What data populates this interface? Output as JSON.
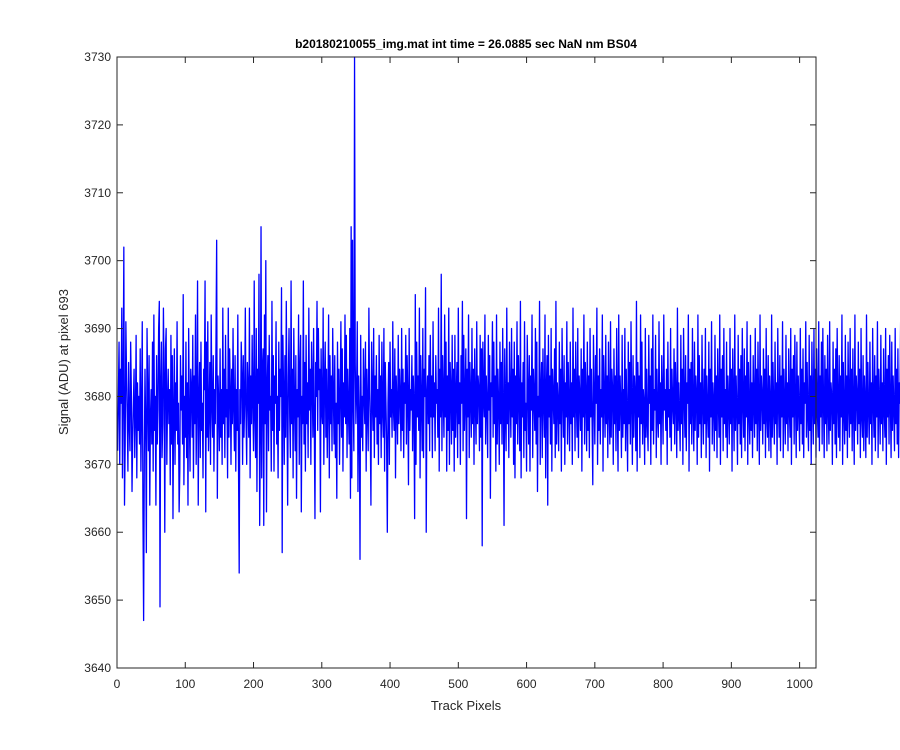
{
  "chart_data": {
    "type": "line",
    "title": "b20180210055_img.mat int time = 26.0885 sec  NaN nm BS04",
    "xlabel": "Track Pixels",
    "ylabel": "Signal (ADU) at pixel 693",
    "xlim": [
      0,
      1024
    ],
    "ylim": [
      3640,
      3730
    ],
    "xticks": [
      0,
      100,
      200,
      300,
      400,
      500,
      600,
      700,
      800,
      900,
      1000
    ],
    "yticks": [
      3640,
      3650,
      3660,
      3670,
      3680,
      3690,
      3700,
      3710,
      3720,
      3730
    ],
    "grid": false,
    "line_color": "#0000ff",
    "series": [
      {
        "x_start": 1,
        "x_step": 1,
        "y": [
          3672,
          3680,
          3688,
          3670,
          3684,
          3679,
          3693,
          3668,
          3681,
          3702,
          3664,
          3673,
          3691,
          3683,
          3677,
          3669,
          3685,
          3676,
          3672,
          3688,
          3681,
          3666,
          3674,
          3679,
          3684,
          3671,
          3677,
          3689,
          3668,
          3682,
          3675,
          3680,
          3673,
          3687,
          3669,
          3678,
          3691,
          3663,
          3647,
          3671,
          3684,
          3676,
          3657,
          3690,
          3680,
          3672,
          3686,
          3664,
          3677,
          3681,
          3673,
          3688,
          3669,
          3692,
          3675,
          3680,
          3664,
          3686,
          3673,
          3678,
          3690,
          3694,
          3649,
          3682,
          3688,
          3671,
          3676,
          3693,
          3683,
          3660,
          3687,
          3690,
          3670,
          3679,
          3684,
          3676,
          3681,
          3667,
          3689,
          3673,
          3686,
          3662,
          3678,
          3687,
          3670,
          3682,
          3675,
          3691,
          3673,
          3679,
          3663,
          3669,
          3686,
          3678,
          3683,
          3673,
          3695,
          3667,
          3680,
          3674,
          3688,
          3671,
          3682,
          3664,
          3690,
          3677,
          3669,
          3684,
          3681,
          3674,
          3689,
          3668,
          3683,
          3676,
          3692,
          3670,
          3680,
          3697,
          3664,
          3679,
          3685,
          3671,
          3688,
          3675,
          3679,
          3668,
          3684,
          3681,
          3697,
          3663,
          3688,
          3674,
          3691,
          3672,
          3678,
          3685,
          3670,
          3692,
          3679,
          3674,
          3686,
          3669,
          3681,
          3676,
          3688,
          3703,
          3665,
          3683,
          3679,
          3672,
          3687,
          3674,
          3681,
          3670,
          3693,
          3676,
          3684,
          3671,
          3689,
          3677,
          3681,
          3668,
          3693,
          3674,
          3687,
          3681,
          3670,
          3684,
          3676,
          3690,
          3678,
          3672,
          3686,
          3669,
          3681,
          3675,
          3692,
          3670,
          3654,
          3681,
          3676,
          3688,
          3683,
          3670,
          3686,
          3674,
          3679,
          3693,
          3677,
          3670,
          3685,
          3681,
          3674,
          3693,
          3668,
          3683,
          3676,
          3689,
          3679,
          3672,
          3697,
          3677,
          3671,
          3690,
          3666,
          3684,
          3679,
          3698,
          3661,
          3674,
          3705,
          3668,
          3684,
          3687,
          3661,
          3692,
          3676,
          3700,
          3663,
          3681,
          3686,
          3672,
          3689,
          3678,
          3680,
          3669,
          3694,
          3675,
          3686,
          3669,
          3683,
          3679,
          3691,
          3673,
          3680,
          3668,
          3688,
          3675,
          3684,
          3680,
          3696,
          3657,
          3689,
          3681,
          3670,
          3686,
          3674,
          3694,
          3679,
          3664,
          3683,
          3690,
          3677,
          3671,
          3697,
          3676,
          3684,
          3668,
          3690,
          3679,
          3672,
          3686,
          3665,
          3681,
          3677,
          3692,
          3670,
          3684,
          3689,
          3663,
          3680,
          3676,
          3697,
          3673,
          3685,
          3669,
          3689,
          3676,
          3682,
          3671,
          3693,
          3678,
          3684,
          3670,
          3688,
          3682,
          3674,
          3690,
          3676,
          3662,
          3685,
          3680,
          3694,
          3675,
          3690,
          3681,
          3684,
          3663,
          3687,
          3678,
          3676,
          3693,
          3670,
          3682,
          3688,
          3674,
          3684,
          3671,
          3679,
          3692,
          3668,
          3686,
          3676,
          3683,
          3672,
          3690,
          3680,
          3673,
          3686,
          3671,
          3679,
          3665,
          3688,
          3676,
          3684,
          3670,
          3680,
          3691,
          3674,
          3687,
          3669,
          3682,
          3677,
          3692,
          3676,
          3689,
          3671,
          3684,
          3678,
          3673,
          3690,
          3665,
          3705,
          3668,
          3703,
          3679,
          3672,
          3730,
          3685,
          3676,
          3681,
          3691,
          3666,
          3683,
          3677,
          3656,
          3689,
          3674,
          3680,
          3672,
          3687,
          3680,
          3676,
          3688,
          3669,
          3684,
          3678,
          3672,
          3693,
          3681,
          3676,
          3664,
          3688,
          3680,
          3675,
          3690,
          3671,
          3683,
          3677,
          3686,
          3673,
          3681,
          3670,
          3689,
          3676,
          3683,
          3671,
          3688,
          3678,
          3674,
          3690,
          3669,
          3685,
          3679,
          3673,
          3660,
          3679,
          3685,
          3670,
          3688,
          3677,
          3681,
          3674,
          3691,
          3678,
          3675,
          3687,
          3668,
          3683,
          3679,
          3673,
          3689,
          3676,
          3684,
          3680,
          3672,
          3690,
          3675,
          3684,
          3671,
          3682,
          3679,
          3689,
          3673,
          3686,
          3680,
          3667,
          3690,
          3675,
          3681,
          3678,
          3686,
          3672,
          3683,
          3679,
          3662,
          3695,
          3670,
          3688,
          3677,
          3683,
          3675,
          3693,
          3668,
          3686,
          3679,
          3672,
          3690,
          3671,
          3684,
          3680,
          3696,
          3660,
          3680,
          3683,
          3676,
          3686,
          3672,
          3689,
          3677,
          3683,
          3671,
          3691,
          3677,
          3682,
          3672,
          3686,
          3679,
          3681,
          3674,
          3693,
          3669,
          3684,
          3677,
          3698,
          3672,
          3686,
          3680,
          3674,
          3692,
          3677,
          3688,
          3669,
          3683,
          3675,
          3693,
          3670,
          3685,
          3681,
          3673,
          3689,
          3675,
          3684,
          3669,
          3689,
          3674,
          3680,
          3685,
          3671,
          3693,
          3676,
          3682,
          3670,
          3686,
          3679,
          3694,
          3672,
          3689,
          3675,
          3680,
          3687,
          3662,
          3684,
          3677,
          3692,
          3671,
          3685,
          3680,
          3674,
          3690,
          3676,
          3684,
          3670,
          3687,
          3679,
          3673,
          3691,
          3676,
          3683,
          3681,
          3672,
          3689,
          3674,
          3687,
          3658,
          3688,
          3680,
          3677,
          3692,
          3673,
          3683,
          3679,
          3671,
          3689,
          3678,
          3686,
          3665,
          3682,
          3680,
          3691,
          3674,
          3688,
          3676,
          3683,
          3669,
          3692,
          3673,
          3684,
          3679,
          3670,
          3688,
          3676,
          3685,
          3673,
          3690,
          3679,
          3661,
          3687,
          3678,
          3672,
          3693,
          3676,
          3682,
          3671,
          3688,
          3680,
          3674,
          3690,
          3677,
          3684,
          3670,
          3688,
          3668,
          3683,
          3676,
          3691,
          3673,
          3686,
          3680,
          3672,
          3694,
          3668,
          3682,
          3677,
          3685,
          3671,
          3691,
          3675,
          3679,
          3669,
          3689,
          3681,
          3673,
          3686,
          3669,
          3683,
          3678,
          3692,
          3671,
          3684,
          3680,
          3675,
          3690,
          3673,
          3688,
          3666,
          3680,
          3677,
          3694,
          3670,
          3681,
          3685,
          3671,
          3687,
          3679,
          3674,
          3692,
          3668,
          3681,
          3686,
          3664,
          3689,
          3677,
          3683,
          3673,
          3690,
          3669,
          3684,
          3680,
          3676,
          3687,
          3671,
          3694,
          3673,
          3682,
          3679,
          3672,
          3688,
          3676,
          3684,
          3669,
          3690,
          3680,
          3674,
          3686,
          3670,
          3682,
          3677,
          3691,
          3673,
          3685,
          3679,
          3672,
          3688,
          3676,
          3682,
          3670,
          3693,
          3677,
          3684,
          3672,
          3688,
          3679,
          3674,
          3690,
          3671,
          3683,
          3680,
          3675,
          3687,
          3669,
          3684,
          3677,
          3692,
          3673,
          3685,
          3680,
          3672,
          3688,
          3675,
          3683,
          3671,
          3690,
          3677,
          3684,
          3676,
          3667,
          3689,
          3680,
          3673,
          3686,
          3679,
          3693,
          3670,
          3683,
          3675,
          3687,
          3673,
          3681,
          3677,
          3692,
          3669,
          3686,
          3680,
          3674,
          3689,
          3676,
          3683,
          3671,
          3688,
          3678,
          3673,
          3691,
          3674,
          3684,
          3681,
          3670,
          3687,
          3676,
          3683,
          3672,
          3690,
          3678,
          3669,
          3692,
          3675,
          3683,
          3679,
          3671,
          3689,
          3674,
          3681,
          3676,
          3690,
          3672,
          3684,
          3677,
          3669,
          3688,
          3676,
          3685,
          3673,
          3691,
          3679,
          3670,
          3686,
          3674,
          3683,
          3680,
          3672,
          3694,
          3669,
          3685,
          3677,
          3683,
          3671,
          3692,
          3676,
          3688,
          3673,
          3681,
          3679,
          3670,
          3690,
          3674,
          3684,
          3676,
          3672,
          3689,
          3679,
          3683,
          3670,
          3687,
          3675,
          3692,
          3673,
          3681,
          3678,
          3689,
          3671,
          3684,
          3677,
          3674,
          3691,
          3676,
          3682,
          3670,
          3686,
          3680,
          3673,
          3692,
          3678,
          3681,
          3675,
          3684,
          3670,
          3688,
          3677,
          3681,
          3674,
          3690,
          3672,
          3684,
          3679,
          3676,
          3687,
          3673,
          3685,
          3680,
          3671,
          3693,
          3675,
          3682,
          3677,
          3672,
          3689,
          3676,
          3684,
          3670,
          3690,
          3680,
          3674,
          3686,
          3672,
          3682,
          3679,
          3692,
          3669,
          3684,
          3676,
          3685,
          3673,
          3690,
          3678,
          3672,
          3688,
          3675,
          3683,
          3680,
          3670,
          3692,
          3674,
          3686,
          3676,
          3682,
          3671,
          3689,
          3679,
          3673,
          3684,
          3676,
          3690,
          3671,
          3683,
          3678,
          3674,
          3688,
          3669,
          3684,
          3677,
          3691,
          3673,
          3682,
          3679,
          3672,
          3689,
          3675,
          3683,
          3671,
          3687,
          3679,
          3674,
          3692,
          3670,
          3684,
          3677,
          3686,
          3672,
          3690,
          3676,
          3681,
          3674,
          3688,
          3671,
          3683,
          3679,
          3673,
          3690,
          3676,
          3684,
          3669,
          3687,
          3680,
          3672,
          3692,
          3675,
          3683,
          3678,
          3670,
          3689,
          3676,
          3684,
          3673,
          3686,
          3671,
          3690,
          3679,
          3674,
          3687,
          3672,
          3683,
          3677,
          3691,
          3670,
          3685,
          3678,
          3673,
          3689,
          3675,
          3682,
          3671,
          3686,
          3679,
          3674,
          3690,
          3676,
          3684,
          3672,
          3688,
          3678,
          3670,
          3692,
          3675,
          3683,
          3680,
          3673,
          3687,
          3676,
          3684,
          3671,
          3690,
          3677,
          3674,
          3686,
          3672,
          3683,
          3679,
          3671,
          3692,
          3674,
          3685,
          3678,
          3673,
          3688,
          3676,
          3682,
          3670,
          3690,
          3679,
          3674,
          3686,
          3672,
          3683,
          3677,
          3691,
          3671,
          3684,
          3679,
          3673,
          3689,
          3676,
          3682,
          3672,
          3687,
          3678,
          3674,
          3690,
          3670,
          3684,
          3677,
          3686,
          3673,
          3689,
          3679,
          3671,
          3688,
          3675,
          3683,
          3678,
          3672,
          3690,
          3676,
          3684,
          3673,
          3687,
          3671,
          3682,
          3679,
          3691,
          3674,
          3685,
          3677,
          3672,
          3689,
          3675,
          3683,
          3670,
          3688,
          3679,
          3673,
          3690,
          3676,
          3684,
          3671,
          3687,
          3678,
          3674,
          3691,
          3672,
          3683,
          3677,
          3688,
          3673,
          3690,
          3679,
          3671,
          3686,
          3676,
          3684,
          3672,
          3689,
          3678,
          3673,
          3691,
          3675,
          3682,
          3680,
          3670,
          3688,
          3676,
          3684,
          3673,
          3687,
          3671,
          3690,
          3679,
          3674,
          3686,
          3672,
          3683,
          3677,
          3692,
          3670,
          3685,
          3678,
          3673,
          3689,
          3675,
          3683,
          3671,
          3688,
          3679,
          3674,
          3690,
          3676,
          3684,
          3672,
          3687,
          3678,
          3670,
          3692,
          3675,
          3683,
          3680,
          3673,
          3688,
          3676,
          3684,
          3671,
          3690,
          3677,
          3674,
          3686,
          3672,
          3683,
          3679,
          3671,
          3692,
          3674,
          3685,
          3678,
          3673,
          3688,
          3676,
          3682,
          3670,
          3690,
          3679,
          3674,
          3686,
          3672,
          3683,
          3677,
          3691,
          3671,
          3684,
          3679,
          3673,
          3689,
          3676,
          3682,
          3672,
          3687,
          3678,
          3674,
          3690,
          3670,
          3684,
          3677,
          3686,
          3673,
          3689,
          3679,
          3671,
          3688,
          3675,
          3683,
          3678,
          3672,
          3690,
          3676,
          3684,
          3673,
          3687,
          3671,
          3682,
          3679,
          3691,
          3674,
          3685,
          3677,
          3672,
          3689,
          3675,
          3683,
          3670
        ]
      }
    ]
  }
}
